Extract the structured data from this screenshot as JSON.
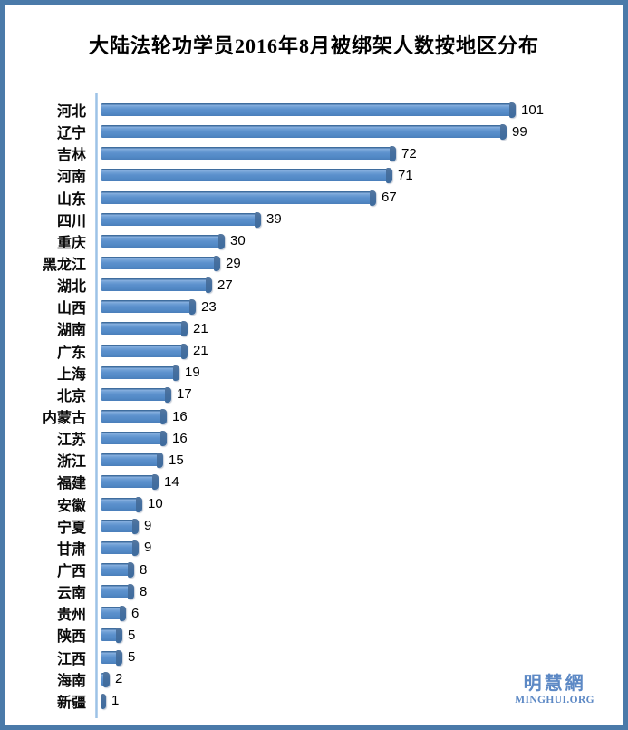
{
  "chart_data": {
    "type": "bar",
    "orientation": "horizontal",
    "title": "大陆法轮功学员2016年8月被绑架人数按地区分布",
    "categories": [
      "河北",
      "辽宁",
      "吉林",
      "河南",
      "山东",
      "四川",
      "重庆",
      "黑龙江",
      "湖北",
      "山西",
      "湖南",
      "广东",
      "上海",
      "北京",
      "内蒙古",
      "江苏",
      "浙江",
      "福建",
      "安徽",
      "宁夏",
      "甘肃",
      "广西",
      "云南",
      "贵州",
      "陕西",
      "江西",
      "海南",
      "新疆"
    ],
    "values": [
      101,
      99,
      72,
      71,
      67,
      39,
      30,
      29,
      27,
      23,
      21,
      21,
      19,
      17,
      16,
      16,
      15,
      14,
      10,
      9,
      9,
      8,
      8,
      6,
      5,
      5,
      2,
      1
    ],
    "xlim": [
      0,
      110
    ],
    "grid": false,
    "legend": null,
    "value_labels_shown": true,
    "bar_color": "#5b90cc",
    "bar_cap_color": "#3e6b9d",
    "axis_line_color": "#9dc2e6"
  },
  "watermark": {
    "chinese": "明慧網",
    "latin": "MINGHUI.ORG",
    "color": "#5d89c5"
  },
  "frame": {
    "border_color": "#4a7aa9"
  }
}
